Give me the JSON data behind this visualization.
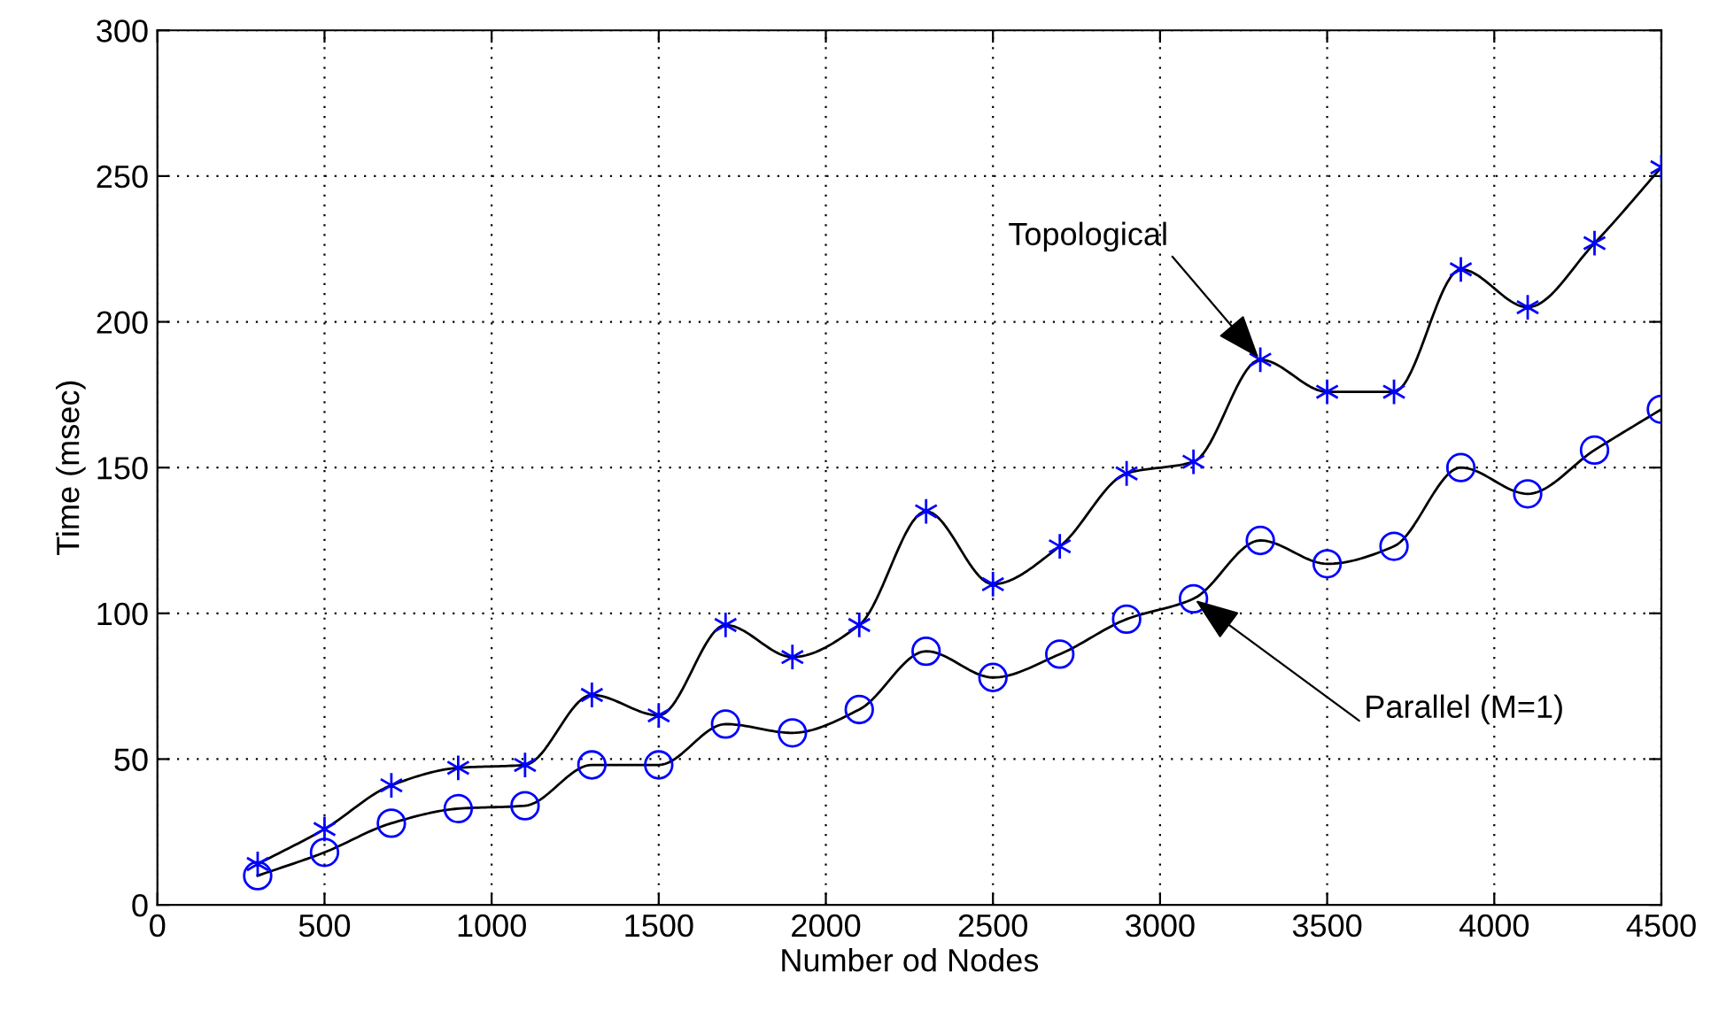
{
  "chart_data": {
    "type": "line",
    "xlabel": "Number od Nodes",
    "ylabel": "Time (msec)",
    "x": [
      300,
      500,
      700,
      900,
      1100,
      1300,
      1500,
      1700,
      1900,
      2100,
      2300,
      2500,
      2700,
      2900,
      3100,
      3300,
      3500,
      3700,
      3900,
      4100,
      4300,
      4500
    ],
    "series": [
      {
        "color": "#0000ff",
        "marker": "cross",
        "values": [
          14,
          26,
          41,
          47,
          48,
          72,
          65,
          96,
          85,
          96,
          135,
          110,
          123,
          148,
          152,
          187,
          176,
          176,
          218,
          205,
          227,
          253
        ]
      },
      {
        "color": "#0000ff",
        "marker": "circle",
        "values": [
          10,
          18,
          28,
          33,
          34,
          48,
          48,
          62,
          59,
          67,
          87,
          78,
          86,
          98,
          105,
          125,
          117,
          123,
          150,
          141,
          156,
          170
        ]
      }
    ],
    "annotations": [
      {
        "text": "Topological",
        "x": 3300,
        "y": 187
      },
      {
        "text": "Parallel (M=1)",
        "x": 3100,
        "y": 105
      }
    ],
    "xlim": [
      0,
      4500
    ],
    "xticks": [
      0,
      500,
      1000,
      1500,
      2000,
      2500,
      3000,
      3500,
      4000,
      4500
    ],
    "ylim": [
      0,
      300
    ],
    "yticks": [
      0,
      50,
      100,
      150,
      200,
      250,
      300
    ],
    "grid": true,
    "legend": false,
    "line_style": "solid"
  }
}
